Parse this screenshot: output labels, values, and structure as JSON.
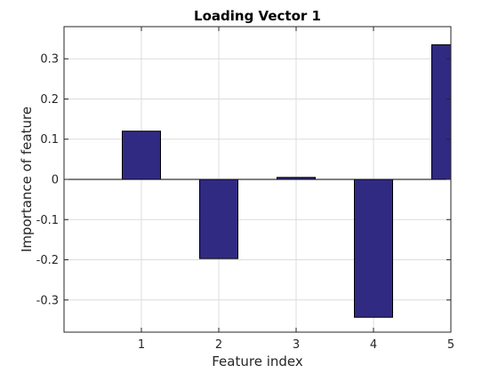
{
  "chart_data": {
    "type": "bar",
    "title": "Loading Vector 1",
    "xlabel": "Feature index",
    "ylabel": "Importance of feature",
    "categories": [
      "1",
      "2",
      "3",
      "4",
      "5"
    ],
    "x": [
      1,
      2,
      3,
      4,
      5
    ],
    "values": [
      0.12,
      -0.197,
      0.005,
      -0.343,
      0.335
    ],
    "xlim": [
      0,
      5
    ],
    "ylim": [
      -0.38,
      0.38
    ],
    "xticks": [
      1,
      2,
      3,
      4,
      5
    ],
    "yticks": [
      -0.3,
      -0.2,
      -0.1,
      0,
      0.1,
      0.2,
      0.3
    ],
    "ytick_labels": [
      "-0.3",
      "-0.2",
      "-0.1",
      "0",
      "0.1",
      "0.2",
      "0.3"
    ],
    "grid": true,
    "bar_color": "#312a83",
    "bar_edge_color": "#000000",
    "grid_color": "#dcdcdc",
    "axis_color": "#262626"
  }
}
